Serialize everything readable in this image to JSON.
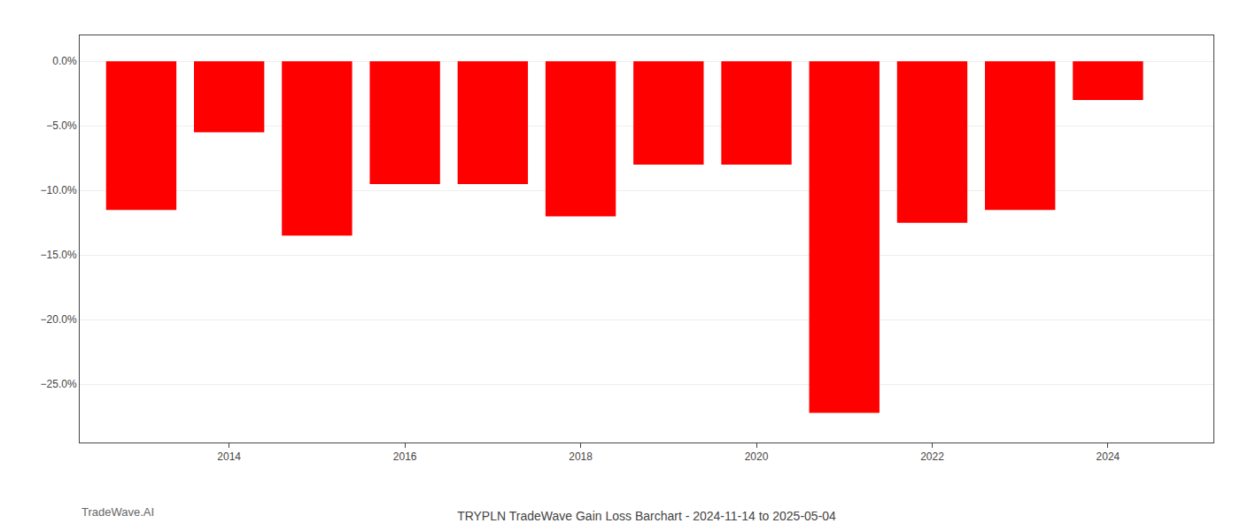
{
  "chart_data": {
    "type": "bar",
    "title": "TRYPLN TradeWave Gain Loss Barchart - 2024-11-14 to 2025-05-04",
    "x": [
      2013,
      2014,
      2015,
      2016,
      2017,
      2018,
      2019,
      2020,
      2021,
      2022,
      2023,
      2024
    ],
    "values": [
      -11.5,
      -5.5,
      -13.5,
      -9.5,
      -9.5,
      -12.0,
      -8.0,
      -8.0,
      -27.2,
      -12.5,
      -11.5,
      -3.0
    ],
    "color": "#ff0000",
    "xlim": [
      2012.3,
      2025.2
    ],
    "xticks": [
      2014,
      2016,
      2018,
      2020,
      2022,
      2024
    ],
    "ylim": [
      -29.5,
      2.0
    ],
    "yticks": [
      {
        "value": 0.0,
        "label": "0.0%"
      },
      {
        "value": -5.0,
        "label": "−5.0%"
      },
      {
        "value": -10.0,
        "label": "−10.0%"
      },
      {
        "value": -15.0,
        "label": "−15.0%"
      },
      {
        "value": -20.0,
        "label": "−20.0%"
      },
      {
        "value": -25.0,
        "label": "−25.0%"
      }
    ],
    "grid": true,
    "annotations": [
      {
        "text": "TradeWave.AI"
      }
    ]
  }
}
